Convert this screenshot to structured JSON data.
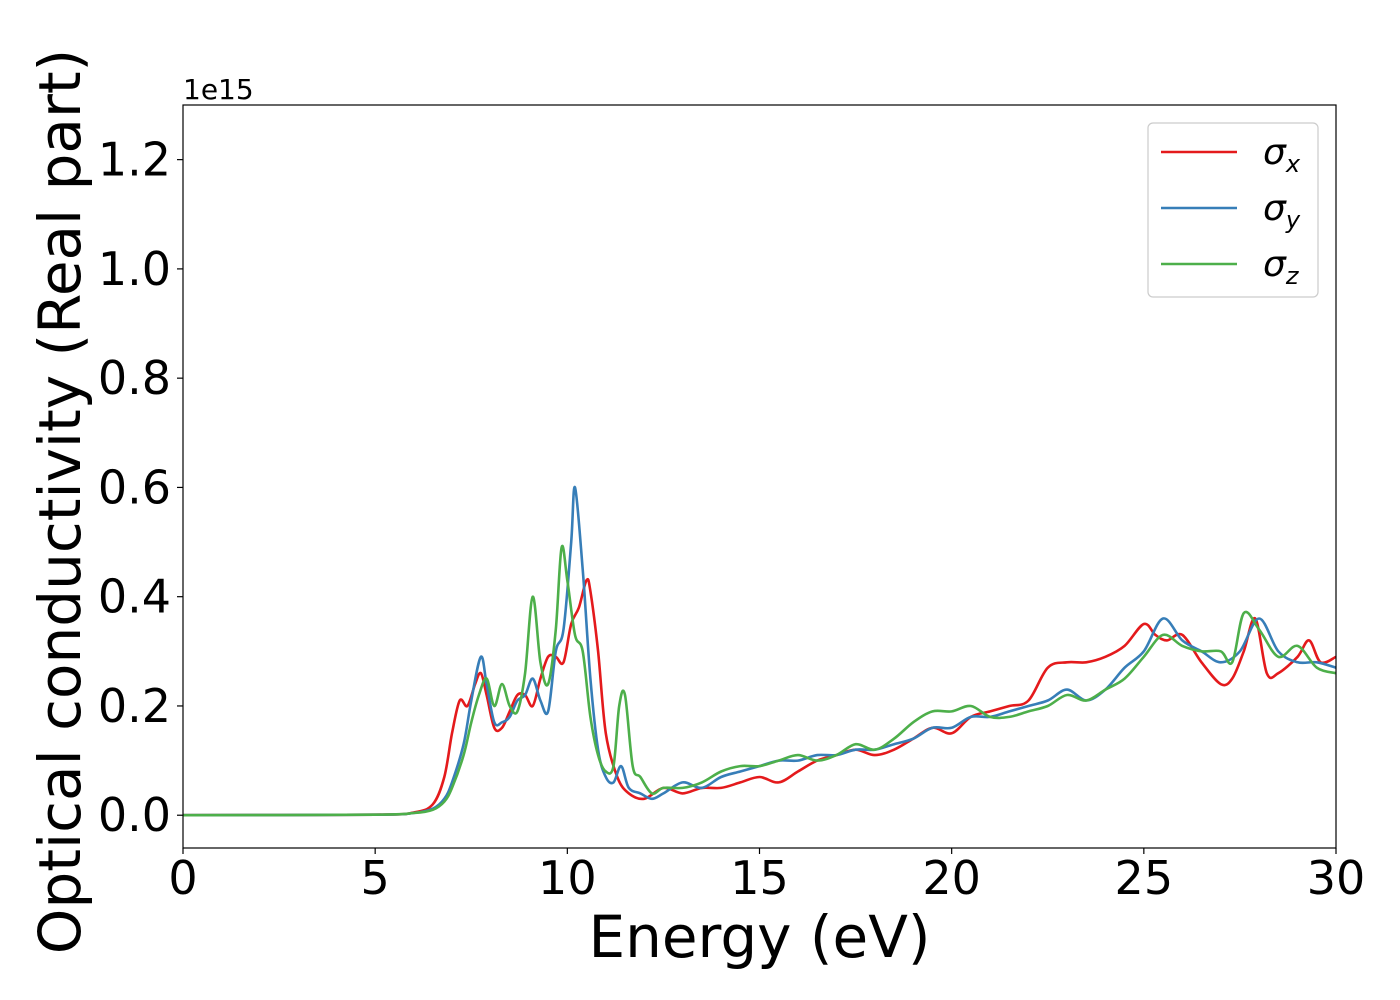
{
  "chart_data": {
    "type": "line",
    "xlabel": "Energy (eV)",
    "ylabel": "Optical conductivity (Real part)",
    "y_offset_label": "1e15",
    "xlim": [
      0,
      30
    ],
    "ylim": [
      -0.06,
      1.3
    ],
    "xticks": [
      0,
      5,
      10,
      15,
      20,
      25,
      30
    ],
    "yticks": [
      0.0,
      0.2,
      0.4,
      0.6,
      0.8,
      1.0,
      1.2
    ],
    "xtick_labels": [
      "0",
      "5",
      "10",
      "15",
      "20",
      "25",
      "30"
    ],
    "ytick_labels": [
      "0.0",
      "0.2",
      "0.4",
      "0.6",
      "0.8",
      "1.0",
      "1.2"
    ],
    "grid": false,
    "legend_position": "top-right",
    "series": [
      {
        "name": "σx",
        "sym": "σ",
        "sub": "x",
        "color": "#e41a1c",
        "x": [
          0,
          5,
          6,
          6.5,
          6.8,
          7,
          7.2,
          7.4,
          7.6,
          7.75,
          7.9,
          8.1,
          8.3,
          8.5,
          8.7,
          8.9,
          9.1,
          9.3,
          9.5,
          9.7,
          9.9,
          10.1,
          10.3,
          10.5,
          10.6,
          10.8,
          11.0,
          11.3,
          11.6,
          12.0,
          12.5,
          13.0,
          13.5,
          14.0,
          14.5,
          15.0,
          15.5,
          16.0,
          16.5,
          17.0,
          17.5,
          18.0,
          18.5,
          19.0,
          19.5,
          20.0,
          20.5,
          21.0,
          21.5,
          22.0,
          22.5,
          23.0,
          23.5,
          24.0,
          24.5,
          25.0,
          25.3,
          25.6,
          26.0,
          26.5,
          27.0,
          27.3,
          27.6,
          27.9,
          28.2,
          28.5,
          29.0,
          29.3,
          29.6,
          30.0
        ],
        "y": [
          0,
          0.001,
          0.005,
          0.02,
          0.07,
          0.15,
          0.21,
          0.2,
          0.24,
          0.26,
          0.22,
          0.16,
          0.16,
          0.19,
          0.22,
          0.22,
          0.2,
          0.25,
          0.29,
          0.29,
          0.28,
          0.35,
          0.38,
          0.43,
          0.41,
          0.3,
          0.15,
          0.07,
          0.04,
          0.03,
          0.05,
          0.04,
          0.05,
          0.05,
          0.06,
          0.07,
          0.06,
          0.08,
          0.1,
          0.11,
          0.12,
          0.11,
          0.12,
          0.14,
          0.16,
          0.15,
          0.18,
          0.19,
          0.2,
          0.21,
          0.27,
          0.28,
          0.28,
          0.29,
          0.31,
          0.35,
          0.33,
          0.32,
          0.33,
          0.28,
          0.24,
          0.25,
          0.3,
          0.36,
          0.26,
          0.26,
          0.29,
          0.32,
          0.28,
          0.29
        ]
      },
      {
        "name": "σy",
        "sym": "σ",
        "sub": "y",
        "color": "#377eb8",
        "x": [
          0,
          5,
          6,
          6.5,
          6.8,
          7,
          7.3,
          7.5,
          7.75,
          7.9,
          8.1,
          8.3,
          8.5,
          8.7,
          8.9,
          9.1,
          9.3,
          9.5,
          9.7,
          9.9,
          10.1,
          10.2,
          10.4,
          10.6,
          10.8,
          11.0,
          11.2,
          11.4,
          11.6,
          11.9,
          12.2,
          12.5,
          13.0,
          13.5,
          14.0,
          14.5,
          15.0,
          15.5,
          16.0,
          16.5,
          17.0,
          17.5,
          18.0,
          18.5,
          19.0,
          19.5,
          20.0,
          20.5,
          21.0,
          21.5,
          22.0,
          22.5,
          23.0,
          23.5,
          24.0,
          24.5,
          25.0,
          25.5,
          26.0,
          26.5,
          27.0,
          27.5,
          28.0,
          28.5,
          29.0,
          29.5,
          30.0
        ],
        "y": [
          0,
          0.001,
          0.004,
          0.012,
          0.03,
          0.06,
          0.13,
          0.21,
          0.29,
          0.24,
          0.17,
          0.17,
          0.18,
          0.21,
          0.22,
          0.25,
          0.21,
          0.19,
          0.3,
          0.34,
          0.5,
          0.6,
          0.45,
          0.25,
          0.12,
          0.07,
          0.06,
          0.09,
          0.05,
          0.04,
          0.03,
          0.04,
          0.06,
          0.05,
          0.07,
          0.08,
          0.09,
          0.1,
          0.1,
          0.11,
          0.11,
          0.12,
          0.12,
          0.13,
          0.14,
          0.16,
          0.16,
          0.18,
          0.18,
          0.19,
          0.2,
          0.21,
          0.23,
          0.21,
          0.23,
          0.27,
          0.3,
          0.36,
          0.32,
          0.3,
          0.28,
          0.3,
          0.36,
          0.3,
          0.28,
          0.28,
          0.27
        ]
      },
      {
        "name": "σz",
        "sym": "σ",
        "sub": "z",
        "color": "#4daf4a",
        "x": [
          0,
          5,
          6,
          6.5,
          6.8,
          7,
          7.3,
          7.5,
          7.7,
          7.9,
          8.1,
          8.3,
          8.5,
          8.7,
          8.9,
          9.1,
          9.3,
          9.5,
          9.7,
          9.85,
          10.0,
          10.2,
          10.4,
          10.6,
          10.8,
          11.0,
          11.2,
          11.35,
          11.5,
          11.7,
          11.9,
          12.2,
          12.5,
          13.0,
          13.5,
          14.0,
          14.5,
          15.0,
          15.5,
          16.0,
          16.5,
          17.0,
          17.5,
          18.0,
          18.5,
          19.0,
          19.5,
          20.0,
          20.5,
          21.0,
          21.5,
          22.0,
          22.5,
          23.0,
          23.5,
          24.0,
          24.5,
          25.0,
          25.5,
          26.0,
          26.5,
          27.0,
          27.3,
          27.6,
          28.0,
          28.5,
          29.0,
          29.5,
          30.0
        ],
        "y": [
          0,
          0.001,
          0.004,
          0.01,
          0.025,
          0.05,
          0.11,
          0.17,
          0.22,
          0.25,
          0.2,
          0.24,
          0.2,
          0.19,
          0.26,
          0.4,
          0.28,
          0.24,
          0.34,
          0.49,
          0.43,
          0.33,
          0.3,
          0.18,
          0.11,
          0.08,
          0.09,
          0.2,
          0.22,
          0.09,
          0.07,
          0.04,
          0.05,
          0.05,
          0.06,
          0.08,
          0.09,
          0.09,
          0.1,
          0.11,
          0.1,
          0.11,
          0.13,
          0.12,
          0.14,
          0.17,
          0.19,
          0.19,
          0.2,
          0.18,
          0.18,
          0.19,
          0.2,
          0.22,
          0.21,
          0.23,
          0.25,
          0.29,
          0.33,
          0.31,
          0.3,
          0.3,
          0.28,
          0.37,
          0.34,
          0.29,
          0.31,
          0.27,
          0.26
        ]
      }
    ]
  }
}
